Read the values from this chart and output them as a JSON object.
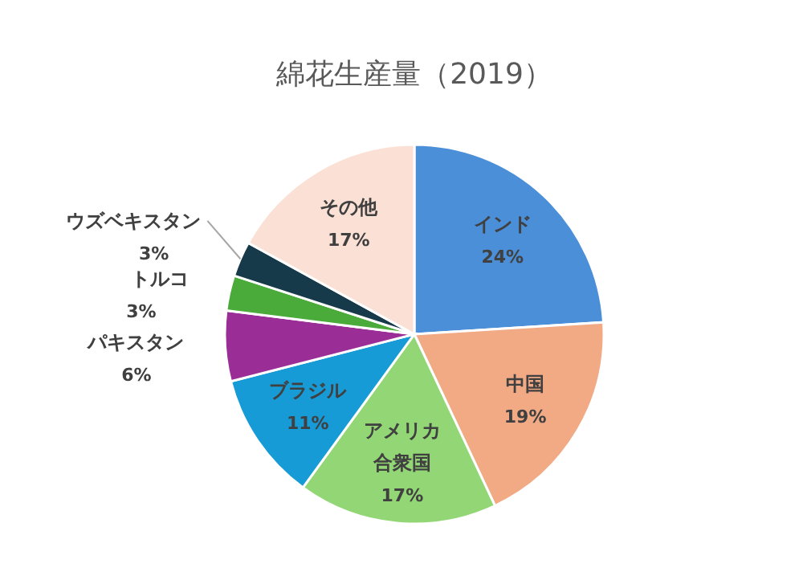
{
  "chart_data": {
    "type": "pie",
    "title": "綿花生産量（2019）",
    "categories": [
      "インド",
      "中国",
      "アメリカ合衆国",
      "ブラジル",
      "パキスタン",
      "トルコ",
      "ウズベキスタン",
      "その他"
    ],
    "values": [
      24,
      19,
      17,
      11,
      6,
      3,
      3,
      17
    ],
    "colors": [
      "#4a8fd8",
      "#f2aa85",
      "#92d675",
      "#179bd6",
      "#9b2d96",
      "#4aab3b",
      "#173a4a",
      "#fbe1d5"
    ],
    "value_labels": [
      "24%",
      "19%",
      "17%",
      "11%",
      "6%",
      "3%",
      "3%",
      "17%"
    ]
  }
}
